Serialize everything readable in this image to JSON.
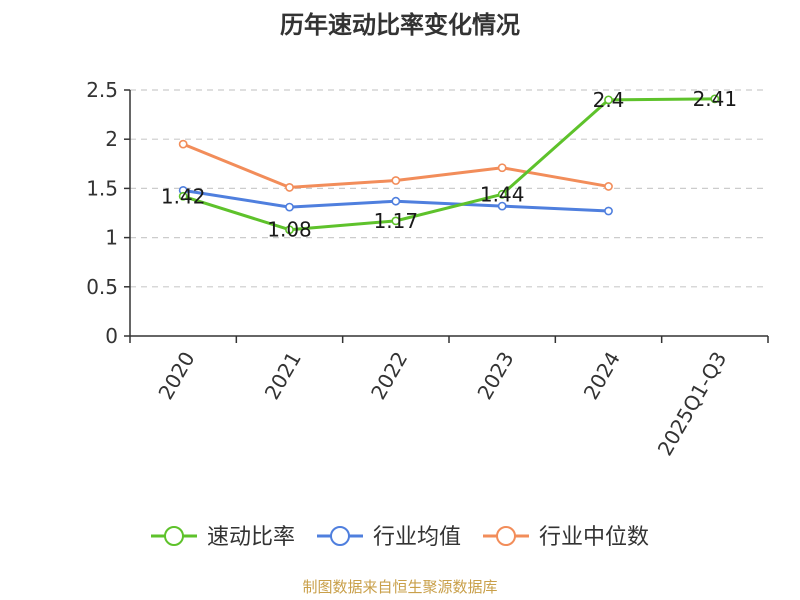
{
  "chart_data": {
    "type": "line",
    "title": "历年速动比率变化情况",
    "categories": [
      "2020",
      "2021",
      "2022",
      "2023",
      "2024",
      "2025Q1-Q3"
    ],
    "ylim": [
      0,
      2.5
    ],
    "yticks": [
      "0",
      "0.5",
      "1",
      "1.5",
      "2",
      "2.5"
    ],
    "grid": true,
    "legend_position": "bottom",
    "series": [
      {
        "name": "速动比率",
        "color": "#5ec22b",
        "values": [
          1.42,
          1.08,
          1.17,
          1.44,
          2.4,
          2.41
        ],
        "labels": [
          "1.42",
          "1.08",
          "1.17",
          "1.44",
          "2.4",
          "2.41"
        ]
      },
      {
        "name": "行业均值",
        "color": "#4f7fde",
        "values": [
          1.48,
          1.31,
          1.37,
          1.32,
          1.27,
          null
        ],
        "labels": []
      },
      {
        "name": "行业中位数",
        "color": "#f28d5a",
        "values": [
          1.95,
          1.51,
          1.58,
          1.71,
          1.52,
          null
        ],
        "labels": []
      }
    ]
  },
  "source_text": "制图数据来自恒生聚源数据库"
}
